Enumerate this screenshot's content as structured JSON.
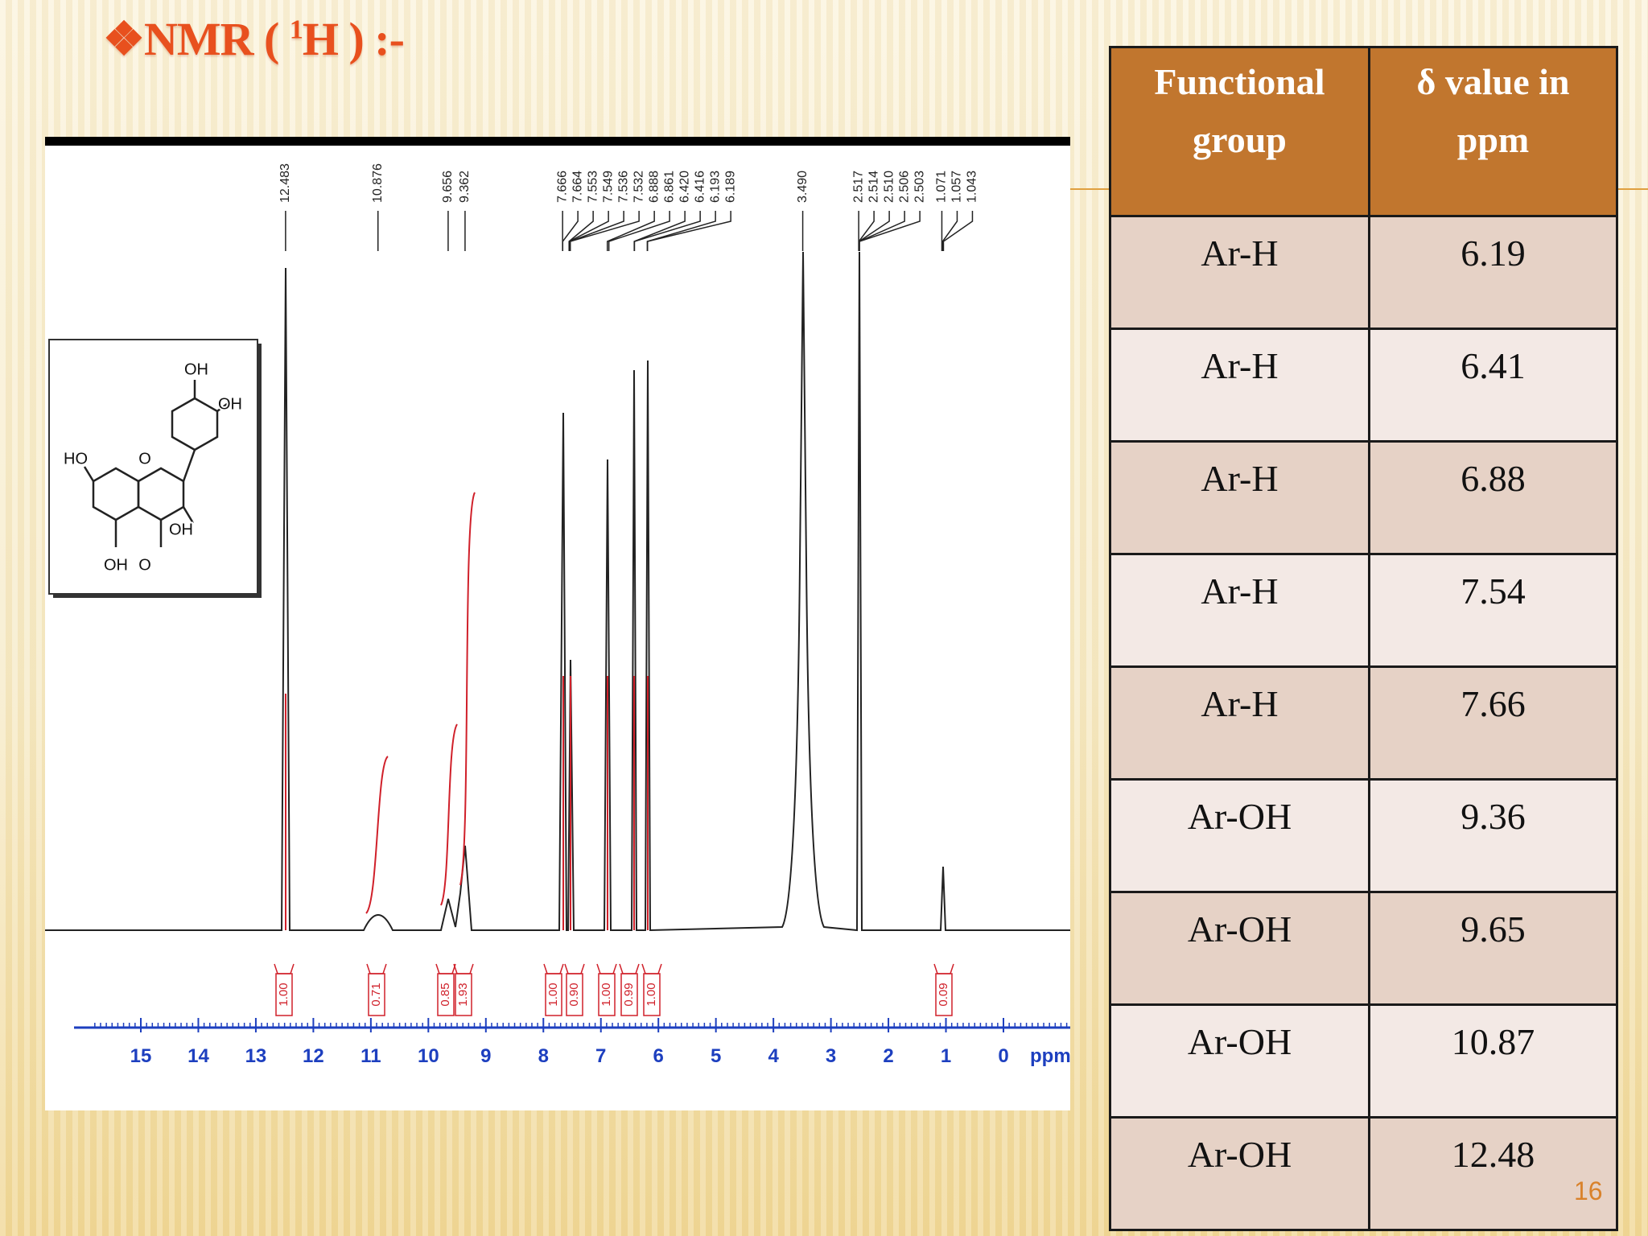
{
  "header": {
    "title": "❖NMR ( ",
    "title_sup": "1",
    "title_rest": "H ) :-"
  },
  "spectrum": {
    "peak_labels": [
      "12.483",
      "10.876",
      "9.656",
      "9.362",
      "7.666",
      "7.664",
      "7.553",
      "7.549",
      "7.536",
      "7.532",
      "6.888",
      "6.861",
      "6.420",
      "6.416",
      "6.193",
      "6.189",
      "3.490",
      "2.517",
      "2.514",
      "2.510",
      "2.506",
      "2.503",
      "1.071",
      "1.057",
      "1.043"
    ],
    "integrals": [
      "1.00",
      "0.71",
      "0.85",
      "1.93",
      "1.00",
      "0.90",
      "1.00",
      "0.99",
      "1.00",
      "0.09"
    ],
    "axis_ticks": [
      15,
      14,
      13,
      12,
      11,
      10,
      9,
      8,
      7,
      6,
      5,
      4,
      3,
      2,
      1,
      0
    ],
    "axis_unit": "ppm",
    "structure_labels": [
      "OH",
      "OH",
      "HO",
      "O",
      "OH",
      "OH",
      "O"
    ]
  },
  "table": {
    "columns": [
      "Functional group",
      "δ value in ppm"
    ],
    "rows": [
      [
        "Ar-H",
        "6.19"
      ],
      [
        "Ar-H",
        "6.41"
      ],
      [
        "Ar-H",
        "6.88"
      ],
      [
        "Ar-H",
        "7.54"
      ],
      [
        "Ar-H",
        "7.66"
      ],
      [
        "Ar-OH",
        "9.36"
      ],
      [
        "Ar-OH",
        "9.65"
      ],
      [
        "Ar-OH",
        "10.87"
      ],
      [
        "Ar-OH",
        "12.48"
      ]
    ]
  },
  "page_number": "16"
}
